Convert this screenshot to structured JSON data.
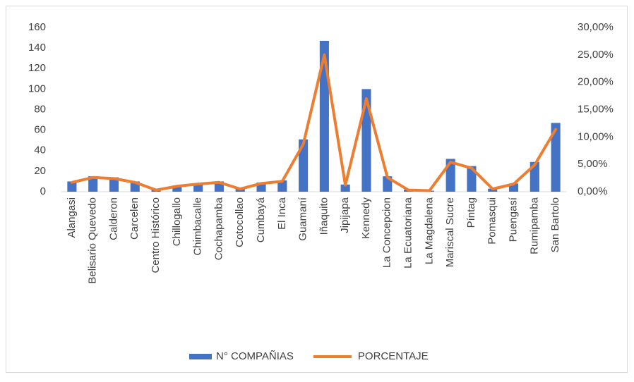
{
  "chart_data": {
    "type": "bar",
    "categories": [
      "Alangasi",
      "Belisario Quevedo",
      "Calderon",
      "Carcelen",
      "Centro Histórico",
      "Chillogallo",
      "Chimbacalle",
      "Cochapamba",
      "Cotocollao",
      "Cumbayá",
      "El Inca",
      "Guamaní",
      "Iñaquito",
      "Jipijapa",
      "Kennedy",
      "La Concepcion",
      "La Ecuatoriana",
      "La Magdalena",
      "Mariscal Sucre",
      "Píntag",
      "Pomasqui",
      "Puengasí",
      "Rumipamba",
      "San Bartolo"
    ],
    "series": [
      {
        "name": "N° COMPAÑIAS",
        "type": "bar",
        "color": "#4472c4",
        "values": [
          10,
          15,
          14,
          10,
          2,
          6,
          8,
          10,
          3,
          9,
          11,
          51,
          147,
          7,
          100,
          15,
          2,
          1,
          32,
          25,
          3,
          8,
          29,
          67
        ]
      },
      {
        "name": "PORCENTAJE",
        "type": "line",
        "axis": "y2",
        "color": "#ed7d31",
        "values": [
          1.7,
          2.6,
          2.4,
          1.7,
          0.3,
          1.0,
          1.4,
          1.7,
          0.5,
          1.5,
          1.9,
          8.7,
          25.0,
          1.2,
          17.0,
          2.6,
          0.3,
          0.2,
          5.4,
          4.3,
          0.5,
          1.4,
          4.9,
          11.4
        ]
      }
    ],
    "ylim": [
      0,
      160
    ],
    "yticks": [
      0,
      20,
      40,
      60,
      80,
      100,
      120,
      140,
      160
    ],
    "y2lim": [
      0,
      30
    ],
    "y2ticks": [
      {
        "value": 0,
        "label": "0,00%"
      },
      {
        "value": 5,
        "label": "5,00%"
      },
      {
        "value": 10,
        "label": "10,00%"
      },
      {
        "value": 15,
        "label": "15,00%"
      },
      {
        "value": 20,
        "label": "20,00%"
      },
      {
        "value": 25,
        "label": "25,00%"
      },
      {
        "value": 30,
        "label": "30,00%"
      }
    ],
    "grid": false,
    "legend": "bottom"
  }
}
